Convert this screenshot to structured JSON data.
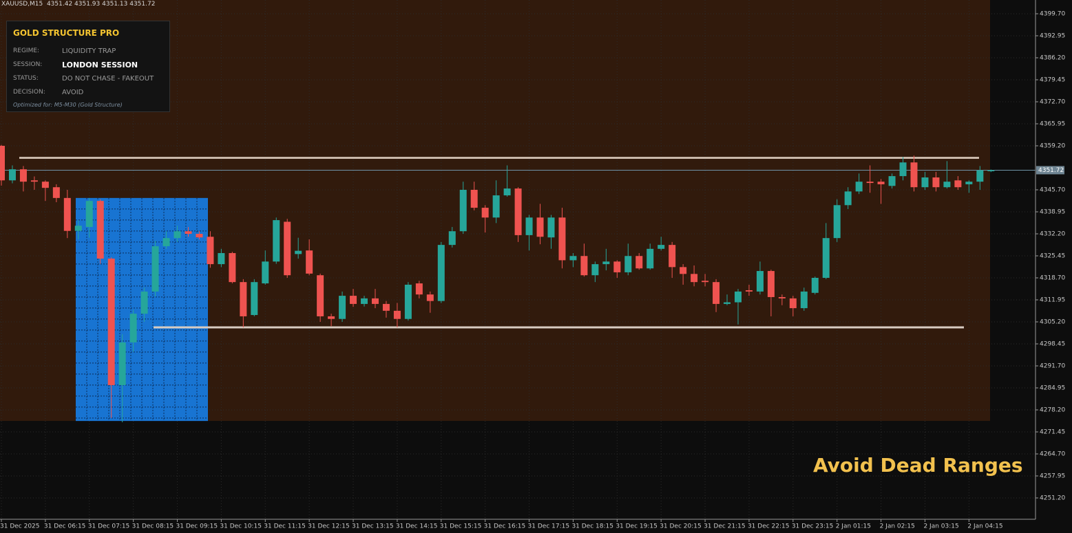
{
  "chart_data": {
    "type": "candlestick",
    "symbol": "XAUUSD,M15",
    "categories": [
      "31 Dec 2025",
      null,
      null,
      null,
      "31 Dec 06:15",
      null,
      null,
      null,
      "31 Dec 07:15",
      null,
      null,
      null,
      "31 Dec 08:15",
      null,
      null,
      null,
      "31 Dec 09:15",
      null,
      null,
      null,
      "31 Dec 10:15",
      null,
      null,
      null,
      "31 Dec 11:15",
      null,
      null,
      null,
      "31 Dec 12:15",
      null,
      null,
      null,
      "31 Dec 13:15",
      null,
      null,
      null,
      "31 Dec 14:15",
      null,
      null,
      null,
      "31 Dec 15:15",
      null,
      null,
      null,
      "31 Dec 16:15",
      null,
      null,
      null,
      "31 Dec 17:15",
      null,
      null,
      null,
      "31 Dec 18:15",
      null,
      null,
      null,
      "31 Dec 19:15",
      null,
      null,
      null,
      "31 Dec 20:15",
      null,
      null,
      null,
      "31 Dec 21:15",
      null,
      null,
      null,
      "31 Dec 22:15",
      null,
      null,
      null,
      "31 Dec 23:15",
      null,
      null,
      null,
      "2 Jan 01:15",
      null,
      null,
      null,
      "2 Jan 02:15",
      null,
      null,
      null,
      "2 Jan 03:15",
      null,
      null,
      null,
      "2 Jan 04:15",
      null,
      null
    ],
    "open": [
      4359.2,
      4348.6,
      4352,
      4348.6,
      4348.2,
      4346.5,
      4343.2,
      4333.1,
      4334.3,
      4342.3,
      4324.6,
      4285.8,
      4298.9,
      4307.7,
      4314.5,
      4328.4,
      4330.9,
      4333,
      4332.2,
      4331.3,
      4322.9,
      4326.3,
      4317.4,
      4307.3,
      4317,
      4323.7,
      4335.9,
      4326,
      4327.1,
      4319.5,
      4306.9,
      4306.1,
      4313.2,
      4310.7,
      4312.4,
      4310.7,
      4308.6,
      4306.1,
      4317,
      4313.6,
      4311.6,
      4328.8,
      4333,
      4345.7,
      4340.2,
      4337.2,
      4344,
      4346.1,
      4331.8,
      4337.2,
      4331.1,
      4337.2,
      4324.1,
      4325.4,
      4319.5,
      4322.9,
      4323.7,
      4320.4,
      4325.4,
      4321.6,
      4327.6,
      4328.8,
      4322,
      4319.9,
      4317.8,
      4317.4,
      4310.7,
      4311.2,
      4314.9,
      4314.5,
      4320.8,
      4312.8,
      4312.4,
      4309.4,
      4314.1,
      4318.7,
      4330.9,
      4341,
      4345.2,
      4348.2,
      4348.2,
      4346.9,
      4349.9,
      4354.1,
      4346.5,
      4349.5,
      4346.5,
      4348.6,
      4347.4,
      4348.2,
      4351.42
    ],
    "high": [
      4359.5,
      4353.2,
      4353,
      4349.8,
      4348.6,
      4347.4,
      4345.7,
      4336.4,
      4343.2,
      4342.8,
      4325,
      4301.4,
      4308.9,
      4315.7,
      4330.1,
      4333,
      4334.7,
      4334.3,
      4333,
      4333,
      4327.6,
      4326.7,
      4318.3,
      4318.3,
      4327.1,
      4337.2,
      4336.8,
      4331,
      4330.5,
      4320,
      4307.7,
      4314.5,
      4315.3,
      4313.2,
      4315.3,
      4311.6,
      4311,
      4317.4,
      4317.8,
      4314.5,
      4329.7,
      4334.3,
      4348.2,
      4348.2,
      4341,
      4348.6,
      4353.2,
      4346.5,
      4338,
      4341.4,
      4338,
      4340.2,
      4326.3,
      4329.2,
      4323.7,
      4327.6,
      4324.1,
      4329.2,
      4326.3,
      4329.2,
      4331.3,
      4329.7,
      4322.9,
      4322.5,
      4319.9,
      4318.3,
      4313.6,
      4315.3,
      4316.6,
      4323.7,
      4321.2,
      4313.6,
      4313.2,
      4315.7,
      4319.1,
      4335.5,
      4342.8,
      4346.5,
      4350.7,
      4353.2,
      4349,
      4350.7,
      4355.8,
      4356.2,
      4351.2,
      4351.2,
      4354.5,
      4349.9,
      4348.6,
      4353,
      4351.93
    ],
    "low": [
      4347,
      4347.7,
      4345.2,
      4345.7,
      4342.3,
      4341.9,
      4330.9,
      4330.5,
      4331,
      4323,
      4275.7,
      4274.4,
      4296,
      4305.2,
      4313,
      4327.6,
      4329.7,
      4331.3,
      4330.5,
      4321.8,
      4322,
      4317,
      4303.5,
      4306.9,
      4316.6,
      4323,
      4318.7,
      4324.6,
      4319.5,
      4305.2,
      4303.9,
      4305.2,
      4309.8,
      4309.9,
      4309.4,
      4306.5,
      4303.5,
      4305.6,
      4312.4,
      4308,
      4311,
      4328,
      4332.2,
      4339.4,
      4332.6,
      4335.5,
      4343.6,
      4329.7,
      4327.1,
      4329,
      4327.6,
      4321.6,
      4322,
      4319.1,
      4317.4,
      4321,
      4318.7,
      4319.5,
      4321.2,
      4321.2,
      4327.1,
      4318.7,
      4316.6,
      4316.1,
      4316.1,
      4308.2,
      4310.3,
      4304.4,
      4313.2,
      4313.6,
      4306.9,
      4310.3,
      4306.9,
      4308.6,
      4313.6,
      4318.3,
      4329.7,
      4339.8,
      4344.4,
      4344.8,
      4341.4,
      4346.1,
      4348.6,
      4345.2,
      4345.7,
      4345.2,
      4346.1,
      4345.7,
      4344.8,
      4345.7,
      4351.13
    ],
    "close": [
      4348.6,
      4352,
      4348.2,
      4348.2,
      4346.3,
      4343.2,
      4333.1,
      4334.7,
      4342.3,
      4324.6,
      4285.8,
      4298.9,
      4307.7,
      4314.5,
      4328.4,
      4330.9,
      4333,
      4332.2,
      4331.1,
      4322.9,
      4326.3,
      4317.4,
      4306.9,
      4317.4,
      4323.7,
      4336.4,
      4319.5,
      4327,
      4320,
      4306.9,
      4306.1,
      4313.2,
      4310.7,
      4312.4,
      4310.7,
      4308.6,
      4306.1,
      4316.6,
      4313.6,
      4311.6,
      4328.8,
      4333,
      4345.7,
      4340.2,
      4337.2,
      4344,
      4346.1,
      4331.8,
      4337.2,
      4331.3,
      4337.2,
      4324.1,
      4325.4,
      4319.5,
      4322.9,
      4323.7,
      4320.4,
      4325.4,
      4321.6,
      4327.6,
      4328.8,
      4322,
      4319.9,
      4317.4,
      4317.4,
      4310.7,
      4311.2,
      4314.5,
      4314.5,
      4320.8,
      4312.8,
      4312.4,
      4309.4,
      4314.5,
      4318.7,
      4330.9,
      4341,
      4345.2,
      4348.2,
      4347.8,
      4347.4,
      4349.9,
      4354.1,
      4346.5,
      4349.5,
      4346.5,
      4348.2,
      4346.5,
      4348.2,
      4351.7,
      4351.72
    ],
    "up_color": "#26a69a",
    "down_color": "#ef5350",
    "ylim": [
      4244.66,
      4403.92
    ],
    "yticks": [
      {
        "value": 4399.7,
        "label": "4399.70"
      },
      4392.95,
      {
        "value": 4386.2,
        "label": "4386.20"
      },
      4379.45,
      {
        "value": 4372.7,
        "label": "4372.70"
      },
      4365.95,
      {
        "value": 4359.2,
        "label": "4359.20"
      },
      {
        "value": 4345.7,
        "label": "4345.70"
      },
      4338.95,
      {
        "value": 4332.2,
        "label": "4332.20"
      },
      4325.45,
      {
        "value": 4318.7,
        "label": "4318.70"
      },
      4311.95,
      {
        "value": 4305.2,
        "label": "4305.20"
      },
      4298.45,
      {
        "value": 4291.7,
        "label": "4291.70"
      },
      4284.95,
      {
        "value": 4278.2,
        "label": "4278.20"
      },
      4271.45,
      {
        "value": 4264.7,
        "label": "4264.70"
      },
      4257.95,
      {
        "value": 4251.2,
        "label": "4251.20"
      }
    ],
    "grid": true,
    "levels": [
      {
        "value": 4355.5,
        "color": "#c9b8aa"
      },
      {
        "value": 4303.5,
        "color": "#d8ccc2"
      }
    ],
    "zone": {
      "top": 4343.2,
      "bottom": 4274.8,
      "color": "#1874d2"
    }
  },
  "panel": {
    "title": "GOLD STRUCTURE PRO",
    "rows": [
      [
        "REGIME:",
        "LIQUIDITY TRAP"
      ],
      [
        "SESSION:",
        "LONDON SESSION"
      ],
      [
        "STATUS:",
        "DO NOT CHASE - FAKEOUT"
      ],
      [
        "DECISION:",
        "AVOID"
      ]
    ],
    "footer": "Optimized for: M5-M30 (Gold Structure)"
  },
  "banner": "Avoid Dead Ranges"
}
